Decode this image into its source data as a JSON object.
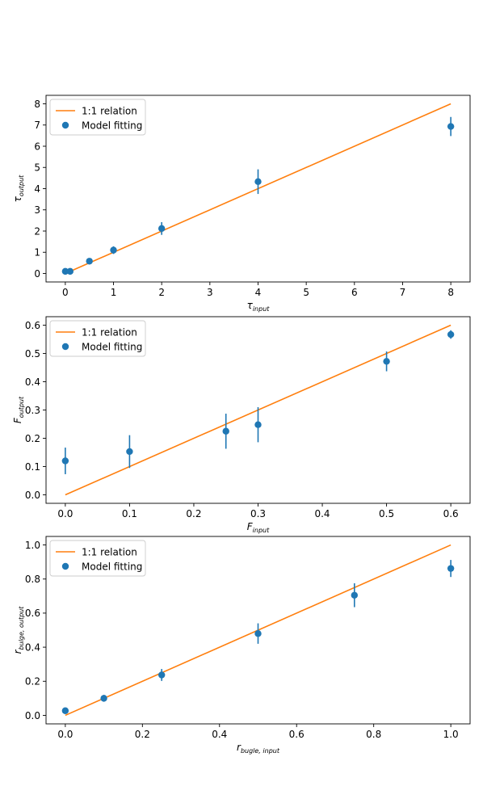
{
  "chart_data": [
    {
      "type": "scatter",
      "xlabel": {
        "base": "τ",
        "sub": "input"
      },
      "ylabel": {
        "base": "τ",
        "sub": "output"
      },
      "xlim": [
        -0.4,
        8.4
      ],
      "ylim": [
        -0.4,
        8.4
      ],
      "xticks": [
        0,
        1,
        2,
        3,
        4,
        5,
        6,
        7,
        8
      ],
      "yticks": [
        0,
        1,
        2,
        3,
        4,
        5,
        6,
        7,
        8
      ],
      "xtick_labels": [
        "0",
        "1",
        "2",
        "3",
        "4",
        "5",
        "6",
        "7",
        "8"
      ],
      "ytick_labels": [
        "0",
        "1",
        "2",
        "3",
        "4",
        "5",
        "6",
        "7",
        "8"
      ],
      "legend": {
        "position": "top-left",
        "entries": [
          "1:1 relation",
          "Model fitting"
        ]
      },
      "grid": false,
      "series": [
        {
          "name": "1:1 relation",
          "kind": "line",
          "color": "#ff7f0e",
          "x": [
            0,
            8
          ],
          "y": [
            0,
            8
          ]
        },
        {
          "name": "Model fitting",
          "kind": "errorbar",
          "color": "#1f77b4",
          "x": [
            0,
            0.1,
            0.5,
            1,
            2,
            4,
            8
          ],
          "y": [
            0.1,
            0.1,
            0.58,
            1.1,
            2.12,
            4.33,
            6.93
          ],
          "yerr": [
            0.05,
            0.05,
            0.1,
            0.18,
            0.3,
            0.58,
            0.45
          ]
        }
      ]
    },
    {
      "type": "scatter",
      "xlabel": {
        "base": "F",
        "sub": "input"
      },
      "ylabel": {
        "base": "F",
        "sub": "output"
      },
      "xlim": [
        -0.03,
        0.63
      ],
      "ylim": [
        -0.03,
        0.63
      ],
      "xticks": [
        0.0,
        0.1,
        0.2,
        0.3,
        0.4,
        0.5,
        0.6
      ],
      "yticks": [
        0.0,
        0.1,
        0.2,
        0.3,
        0.4,
        0.5,
        0.6
      ],
      "xtick_labels": [
        "0.0",
        "0.1",
        "0.2",
        "0.3",
        "0.4",
        "0.5",
        "0.6"
      ],
      "ytick_labels": [
        "0.0",
        "0.1",
        "0.2",
        "0.3",
        "0.4",
        "0.5",
        "0.6"
      ],
      "legend": {
        "position": "top-left",
        "entries": [
          "1:1 relation",
          "Model fitting"
        ]
      },
      "grid": false,
      "series": [
        {
          "name": "1:1 relation",
          "kind": "line",
          "color": "#ff7f0e",
          "x": [
            0,
            0.6
          ],
          "y": [
            0,
            0.6
          ]
        },
        {
          "name": "Model fitting",
          "kind": "errorbar",
          "color": "#1f77b4",
          "x": [
            0,
            0.1,
            0.25,
            0.3,
            0.5,
            0.6
          ],
          "y": [
            0.12,
            0.153,
            0.225,
            0.248,
            0.472,
            0.567
          ],
          "yerr": [
            0.047,
            0.058,
            0.062,
            0.062,
            0.035,
            0.015
          ]
        }
      ]
    },
    {
      "type": "scatter",
      "xlabel": {
        "base": "r",
        "sub": "bugle, input"
      },
      "ylabel": {
        "base": "r",
        "sub": "bulge, output"
      },
      "xlim": [
        -0.05,
        1.05
      ],
      "ylim": [
        -0.05,
        1.05
      ],
      "xticks": [
        0.0,
        0.2,
        0.4,
        0.6,
        0.8,
        1.0
      ],
      "yticks": [
        0.0,
        0.2,
        0.4,
        0.6,
        0.8,
        1.0
      ],
      "xtick_labels": [
        "0.0",
        "0.2",
        "0.4",
        "0.6",
        "0.8",
        "1.0"
      ],
      "ytick_labels": [
        "0.0",
        "0.2",
        "0.4",
        "0.6",
        "0.8",
        "1.0"
      ],
      "legend": {
        "position": "top-left",
        "entries": [
          "1:1 relation",
          "Model fitting"
        ]
      },
      "grid": false,
      "series": [
        {
          "name": "1:1 relation",
          "kind": "line",
          "color": "#ff7f0e",
          "x": [
            0,
            1
          ],
          "y": [
            0,
            1
          ]
        },
        {
          "name": "Model fitting",
          "kind": "errorbar",
          "color": "#1f77b4",
          "x": [
            0,
            0.1,
            0.25,
            0.5,
            0.75,
            1.0
          ],
          "y": [
            0.027,
            0.1,
            0.237,
            0.48,
            0.705,
            0.862
          ],
          "yerr": [
            0.01,
            0.02,
            0.035,
            0.06,
            0.07,
            0.05
          ]
        }
      ]
    }
  ]
}
